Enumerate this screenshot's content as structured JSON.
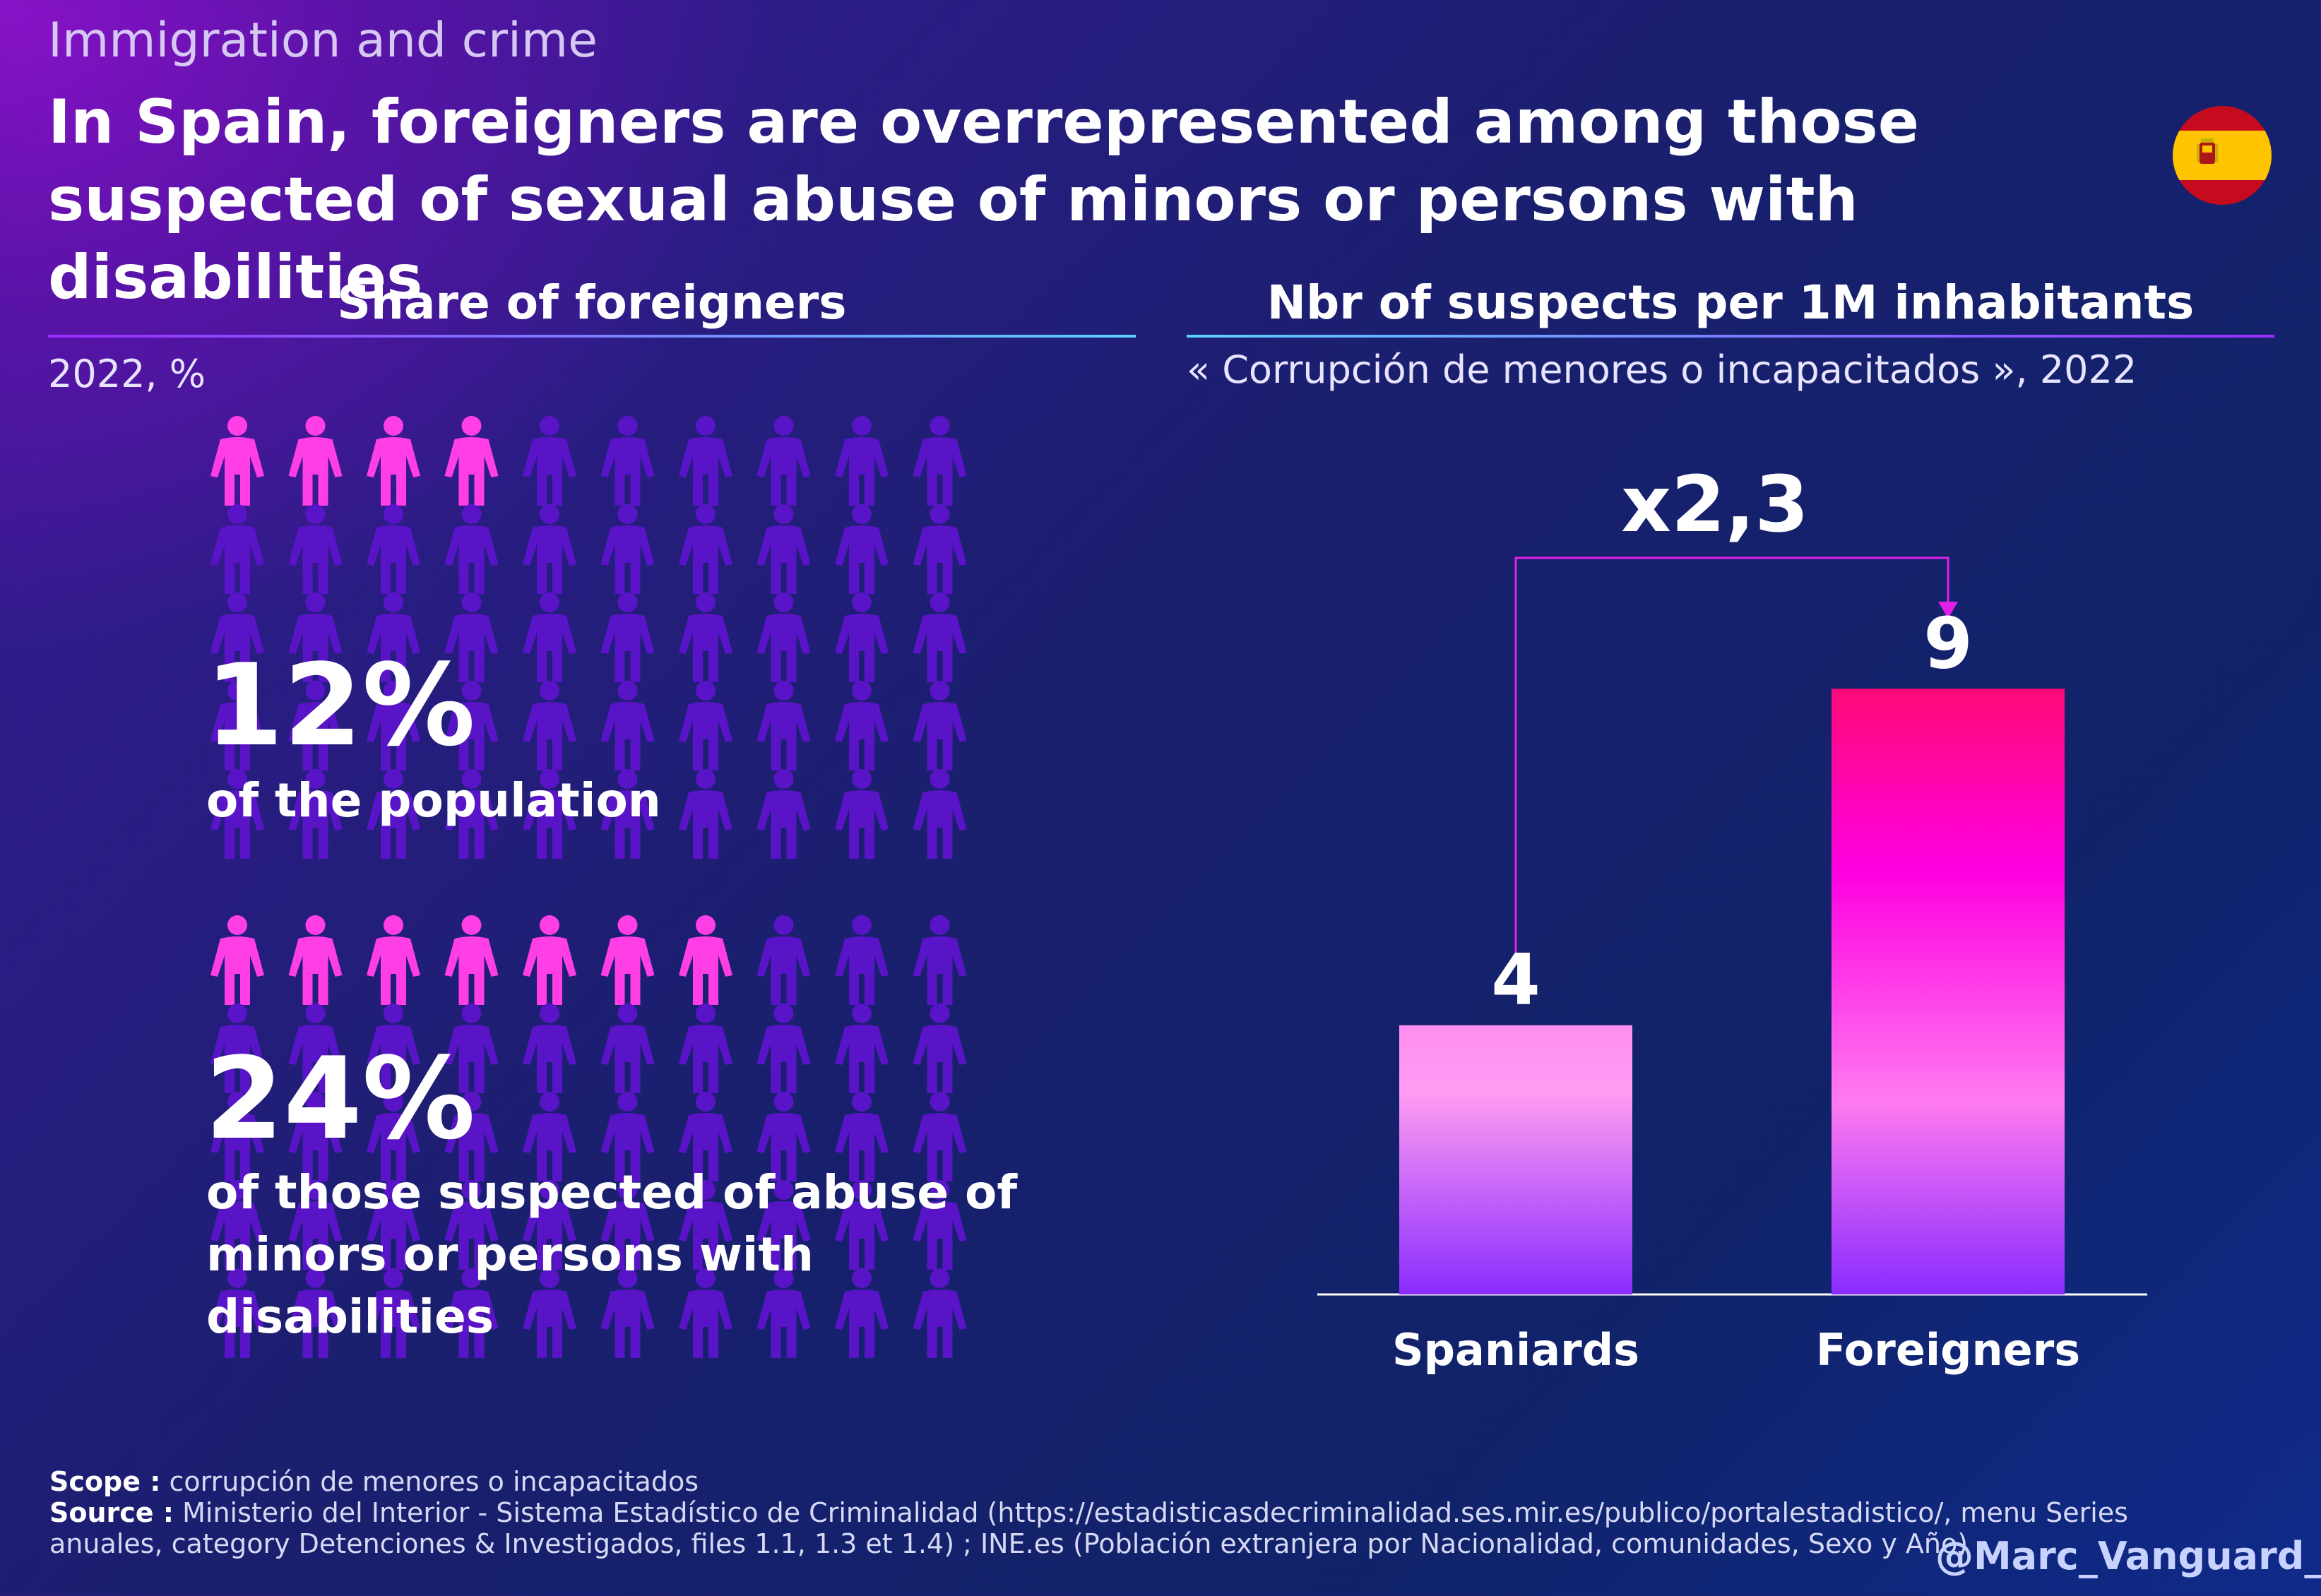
{
  "header": {
    "eyebrow": "Immigration and crime",
    "title": "In Spain, foreigners are overrepresented among those suspected of sexual abuse of minors or persons with disabilities",
    "flag_icon": "spain-flag-icon"
  },
  "left_panel": {
    "title": "Share of foreigners",
    "subtitle": "2022, %",
    "grid_rows": 5,
    "grid_cols": 10,
    "colors": {
      "highlight": "#ff3ee6",
      "base": "#5a14c8"
    },
    "groups": [
      {
        "value": 12,
        "value_label": "12%",
        "label": "of the population"
      },
      {
        "value": 24,
        "value_label": "24%",
        "label": "of those suspected of abuse of minors or persons with disabilities"
      }
    ]
  },
  "right_panel": {
    "title": "Nbr of suspects per 1M inhabitants",
    "subtitle": "« Corrupción de menores o incapacitados », 2022"
  },
  "chart_data": {
    "type": "bar",
    "categories": [
      "Spaniards",
      "Foreigners"
    ],
    "values": [
      4,
      9
    ],
    "value_labels": [
      "4",
      "9"
    ],
    "ratio_label": "x2,3",
    "ylim": [
      0,
      10
    ],
    "grid": false,
    "colors": {
      "spaniards": [
        "#ff8ef0",
        "#8a2cff"
      ],
      "foreigners": [
        "#ff0a78",
        "#ff00e0",
        "#8a2cff"
      ]
    }
  },
  "footer": {
    "scope_label": "Scope :",
    "scope_text": "corrupción de menores o incapacitados",
    "source_label": "Source :",
    "source_text": "Ministerio del Interior - Sistema Estadístico de Criminalidad (https://estadisticasdecriminalidad.ses.mir.es/publico/portalestadistico/, menu Series anuales, category Detenciones & Investigados, files 1.1, 1.3 et 1.4) ; INE.es (Población extranjera por Nacionalidad, comunidades, Sexo y Año)",
    "handle": "@Marc_Vanguard_i"
  }
}
